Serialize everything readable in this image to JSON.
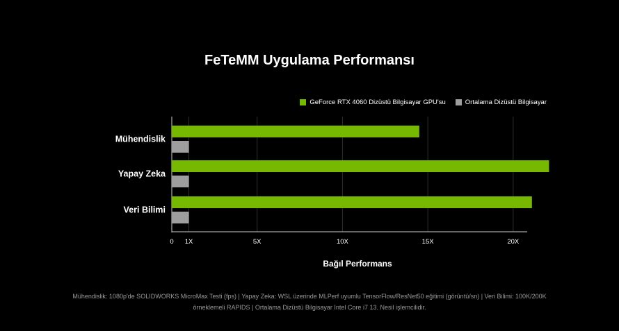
{
  "chart_data": {
    "type": "bar",
    "orientation": "horizontal",
    "title": "FeTeMM Uygulama Performansı",
    "xlabel": "Bağıl Performans",
    "ylabel": "",
    "categories": [
      "Mühendislik",
      "Yapay Zeka",
      "Veri Bilimi"
    ],
    "series": [
      {
        "name": "GeForce RTX 4060 Dizüstü Bilgisayar GPU'su",
        "color": "#76b900",
        "values": [
          14.5,
          22.1,
          21.1
        ]
      },
      {
        "name": "Ortalama Dizüstü Bilgisayar",
        "color": "#9e9e9e",
        "values": [
          1,
          1,
          1
        ]
      }
    ],
    "xlim": [
      0,
      21.8
    ],
    "xticks": [
      {
        "value": 0,
        "label": "0"
      },
      {
        "value": 1,
        "label": "1X"
      },
      {
        "value": 5,
        "label": "5X"
      },
      {
        "value": 10,
        "label": "10X"
      },
      {
        "value": 15,
        "label": "15X"
      },
      {
        "value": 20,
        "label": "20X"
      }
    ],
    "grid": true,
    "legend_position": "top-right"
  },
  "footnote": "Mühendislik: 1080p'de SOLIDWORKS MicroMax Testi (fps) | Yapay Zeka: WSL üzerinde MLPerf uyumlu TensorFlow/ResNet50 eğitimi (görüntü/sn) | Veri Bilimi: 100K/200K örneklemeli RAPIDS |  Ortalama Dizüstü Bilgisayar Intel Core i7 13. Nesil işlemcilidir."
}
